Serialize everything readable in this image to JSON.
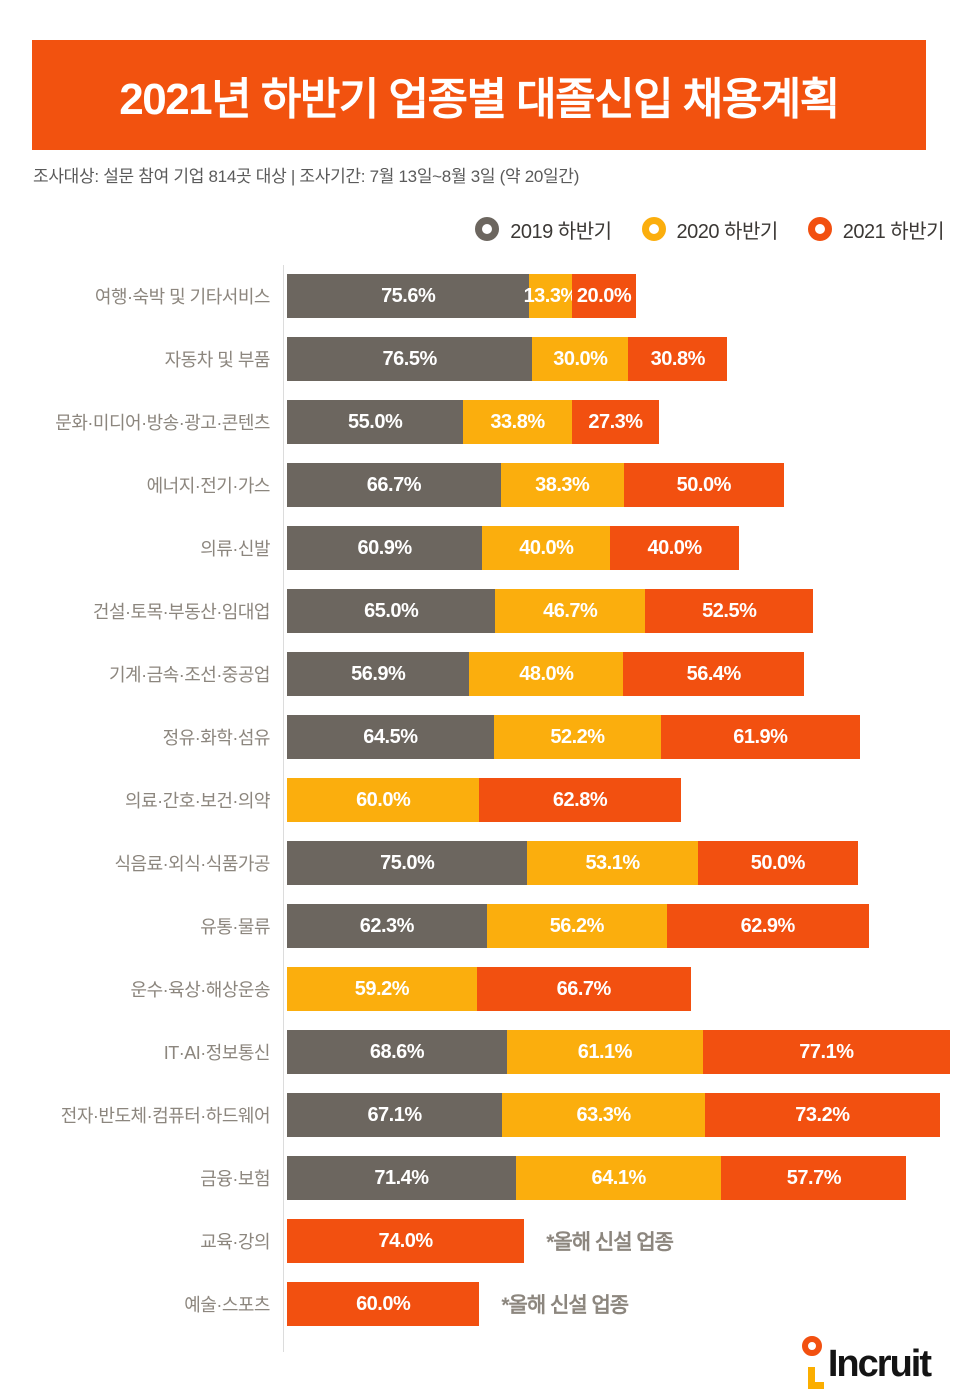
{
  "header": {
    "title": "2021년 하반기 업종별 대졸신입 채용계획",
    "subtitle": "조사대상: 설문 참여 기업 814곳 대상  |  조사기간: 7월 13일~8월 3일 (약 20일간)",
    "banner_color": "#F2520F"
  },
  "colors": {
    "series_2019_gray": "#6C665F",
    "series_2020_yellow": "#FBAE0D",
    "series_2021_orange": "#F25010",
    "category_label_gray": "#8C867E",
    "axis_line": "#DCDCDC",
    "logo_ring_orange": "#F25010",
    "logo_l_yellow": "#FBAE00"
  },
  "chart_data": {
    "type": "bar",
    "subtype": "horizontal-stacked",
    "unit": "%",
    "title": "2021년 하반기 업종별 대졸신입 채용계획",
    "legend_position": "top-right",
    "grid": false,
    "value_labels": "inside-white-bold",
    "categories": [
      "여행·숙박 및 기타서비스",
      "자동차 및 부품",
      "문화·미디어·방송·광고·콘텐츠",
      "에너지·전기·가스",
      "의류·신발",
      "건설·토목·부동산·임대업",
      "기계·금속·조선·중공업",
      "정유·화학·섬유",
      "의료·간호·보건·의약",
      "식음료·외식·식품가공",
      "유통·물류",
      "운수·육상·해상운송",
      "IT·AI·정보통신",
      "전자·반도체·컴퓨터·하드웨어",
      "금융·보험",
      "교육·강의",
      "예술·스포츠"
    ],
    "series": [
      {
        "key": "2019",
        "name": "2019 하반기",
        "color": "#6C665F",
        "values": [
          75.6,
          76.5,
          55.0,
          66.7,
          60.9,
          65.0,
          56.9,
          64.5,
          null,
          75.0,
          62.3,
          null,
          68.6,
          67.1,
          71.4,
          null,
          null
        ]
      },
      {
        "key": "2020",
        "name": "2020 하반기",
        "color": "#FBAE0D",
        "values": [
          13.3,
          30.0,
          33.8,
          38.3,
          40.0,
          46.7,
          48.0,
          52.2,
          60.0,
          53.1,
          56.2,
          59.2,
          61.1,
          63.3,
          64.1,
          null,
          null
        ]
      },
      {
        "key": "2021",
        "name": "2021 하반기",
        "color": "#F25010",
        "values": [
          20.0,
          30.8,
          27.3,
          50.0,
          40.0,
          52.5,
          56.4,
          61.9,
          62.8,
          50.0,
          62.9,
          66.7,
          77.1,
          73.2,
          57.7,
          74.0,
          60.0
        ]
      }
    ],
    "row_notes": [
      null,
      null,
      null,
      null,
      null,
      null,
      null,
      null,
      null,
      null,
      null,
      null,
      null,
      null,
      null,
      "*올해 신설 업종",
      "*올해 신설 업종"
    ]
  },
  "footer": {
    "logo_text": "Incruit"
  }
}
